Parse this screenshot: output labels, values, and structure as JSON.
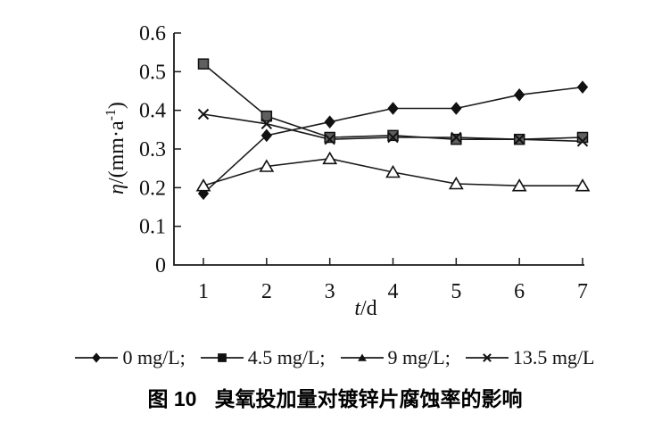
{
  "figure": {
    "caption_prefix": "图 10",
    "caption_title": "臭氧投加量对镀锌片腐蚀率的影响"
  },
  "legend": {
    "items": [
      {
        "marker": "diamond",
        "label": "0 mg/L;"
      },
      {
        "marker": "square",
        "label": "4.5 mg/L;"
      },
      {
        "marker": "triangle",
        "label": "9 mg/L;"
      },
      {
        "marker": "cross",
        "label": "13.5 mg/L"
      }
    ]
  },
  "chart_data": {
    "type": "line",
    "title": "",
    "xlabel": "t/d",
    "ylabel": "η/(mm·a⁻¹)",
    "x": [
      1,
      2,
      3,
      4,
      5,
      6,
      7
    ],
    "xticks": [
      1,
      2,
      3,
      4,
      5,
      6,
      7
    ],
    "xtick_labels": [
      "1",
      "2",
      "3",
      "4",
      "5",
      "6",
      "7"
    ],
    "yticks": [
      0,
      0.1,
      0.2,
      0.3,
      0.4,
      0.5,
      0.6
    ],
    "ytick_labels": [
      "0",
      "0.1",
      "0.2",
      "0.3",
      "0.4",
      "0.5",
      "0.6"
    ],
    "ylim": [
      0,
      0.6
    ],
    "xlim": [
      0.53,
      7
    ],
    "grid": false,
    "legend_position": "bottom",
    "series": [
      {
        "name": "0 mg/L",
        "marker": "diamond",
        "values": [
          0.185,
          0.335,
          0.37,
          0.405,
          0.405,
          0.44,
          0.46
        ]
      },
      {
        "name": "4.5 mg/L",
        "marker": "square",
        "values": [
          0.52,
          0.385,
          0.33,
          0.335,
          0.325,
          0.325,
          0.33
        ]
      },
      {
        "name": "9 mg/L",
        "marker": "triangle-open",
        "values": [
          0.205,
          0.255,
          0.275,
          0.24,
          0.21,
          0.205,
          0.205
        ]
      },
      {
        "name": "13.5 mg/L",
        "marker": "cross",
        "values": [
          0.39,
          0.365,
          0.325,
          0.33,
          0.33,
          0.325,
          0.32
        ]
      }
    ],
    "colors": {
      "line": "#1a1a1a",
      "square_fill": "#5f5f5f",
      "marker_stroke": "#111111",
      "background": "#ffffff"
    }
  }
}
